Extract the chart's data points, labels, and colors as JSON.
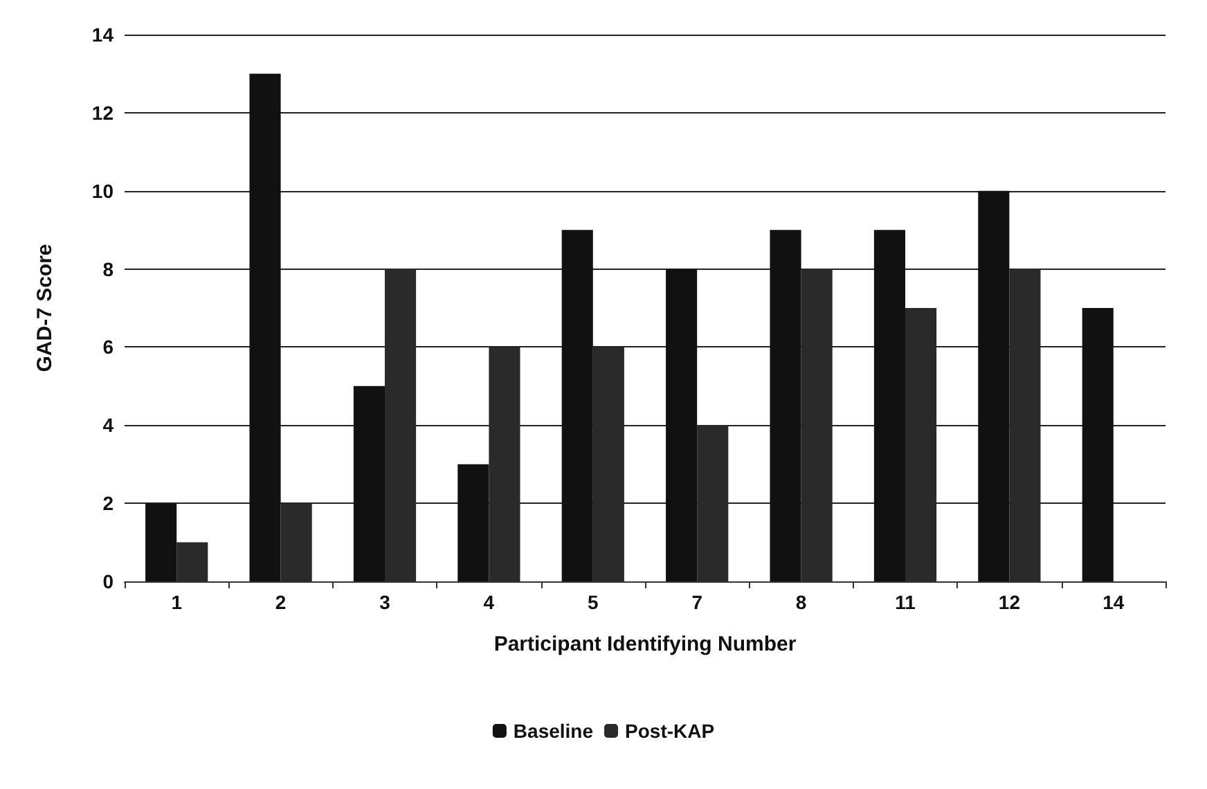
{
  "chart_data": {
    "type": "bar",
    "xlabel": "Participant Identifying Number",
    "ylabel": "GAD-7 Score",
    "categories": [
      "1",
      "2",
      "3",
      "4",
      "5",
      "7",
      "8",
      "11",
      "12",
      "14"
    ],
    "series": [
      {
        "name": "Baseline",
        "color": "#111111",
        "values": [
          2,
          13,
          5,
          3,
          9,
          8,
          9,
          9,
          10,
          7
        ]
      },
      {
        "name": "Post-KAP",
        "color": "#2a2a2a",
        "values": [
          1,
          2,
          8,
          6,
          6,
          4,
          8,
          7,
          8,
          null
        ]
      }
    ],
    "ylim": [
      0,
      14
    ],
    "yticks": [
      0,
      2,
      4,
      6,
      8,
      10,
      12,
      14
    ],
    "grid": "y",
    "legend": "bottom"
  }
}
